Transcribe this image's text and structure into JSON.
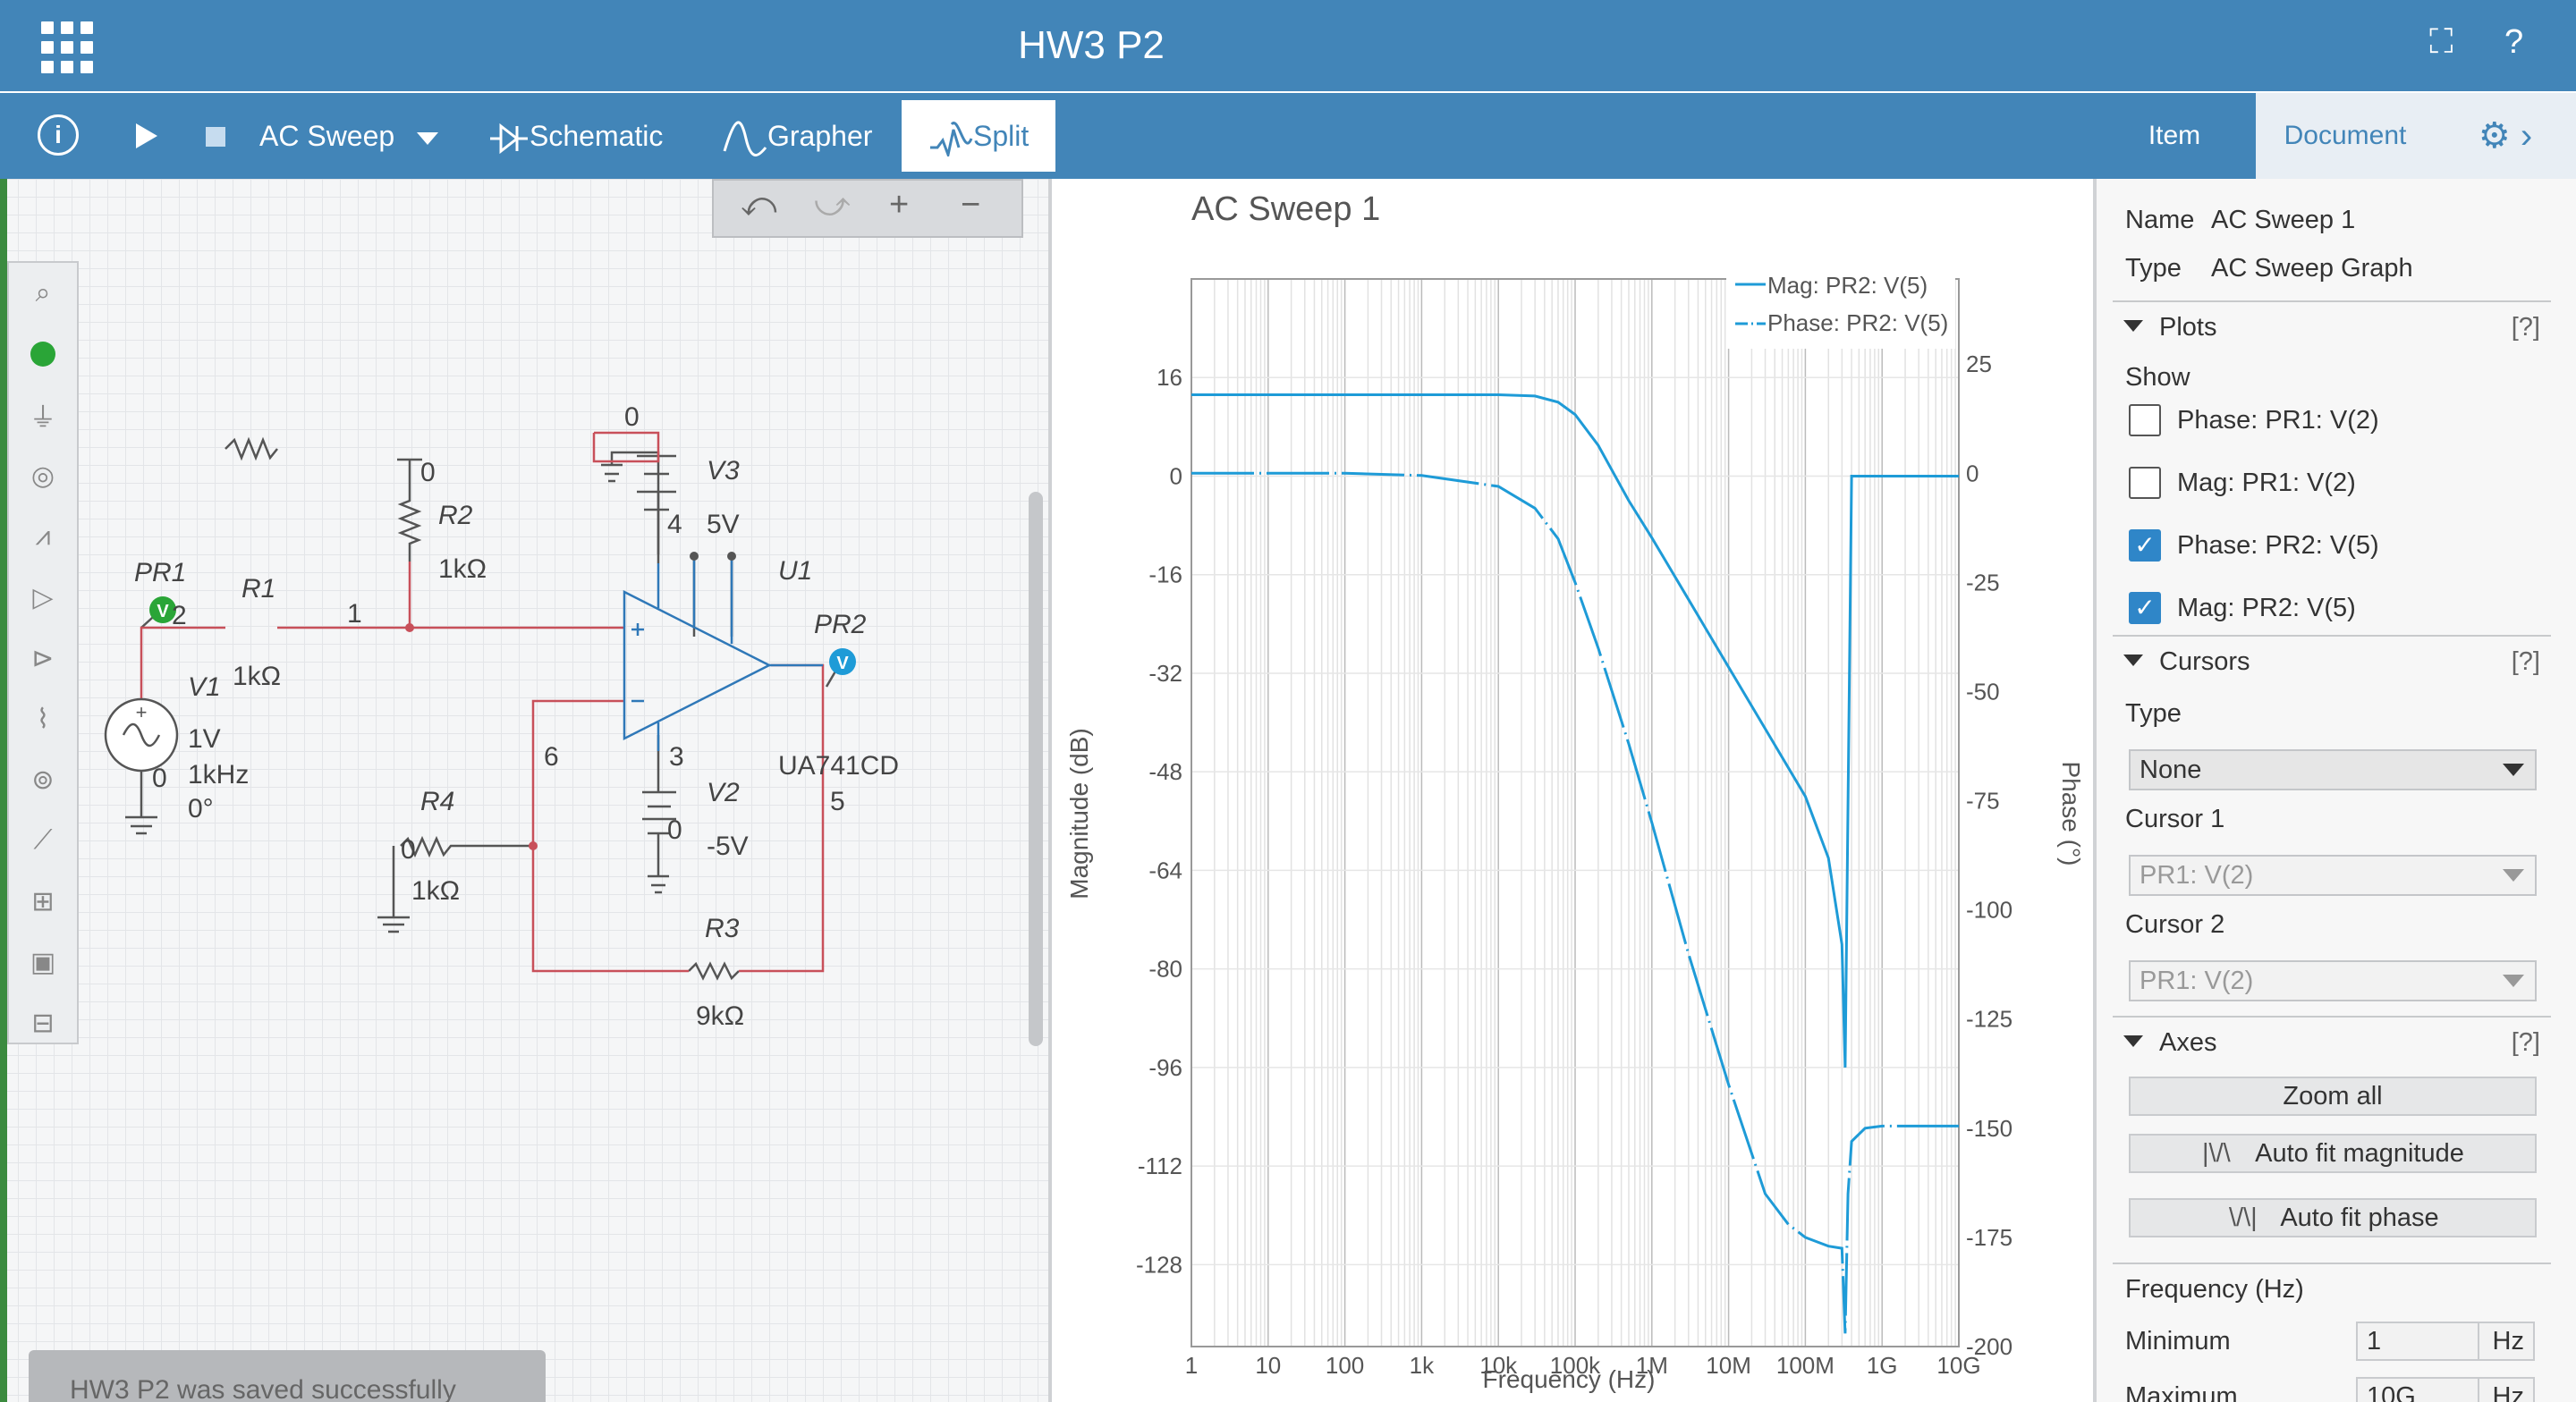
{
  "title": "HW3 P2",
  "titlebar": {
    "fullscreen_icon": "⛶",
    "help_icon": "?"
  },
  "toolbar": {
    "info_icon": "i",
    "sim_type": "AC Sweep",
    "tabs": {
      "schematic": "Schematic",
      "grapher": "Grapher",
      "split": "Split"
    }
  },
  "undobar": {
    "undo": "⤺",
    "redo": "⤻",
    "zoom_in": "+",
    "zoom_out": "−"
  },
  "toast": "HW3 P2 was saved successfully",
  "schematic": {
    "pr1": "PR1",
    "r1": "R1",
    "r1_value": "1kΩ",
    "node1": "1",
    "pr1_node": "2",
    "r2": "R2",
    "r2_value": "1kΩ",
    "r2_gnd_node": "0",
    "v1": "V1",
    "v1_node": "0",
    "v1_amp": "1V",
    "v1_freq": "1kHz",
    "v1_phase": "0°",
    "v3": "V3",
    "v3_value": "5V",
    "v3_node": "4",
    "top_node": "0",
    "u1": "U1",
    "u1_part": "UA741CD",
    "pr2": "PR2",
    "out_node": "5",
    "v2": "V2",
    "v2_value": "-5V",
    "v2_node": "3",
    "v2_gnd_node": "0",
    "node6": "6",
    "r4": "R4",
    "r4_value": "1kΩ",
    "r4_node": "0",
    "r3": "R3",
    "r3_value": "9kΩ",
    "probe_label": "V"
  },
  "graph": {
    "title": "AC Sweep 1",
    "legend": [
      "Mag: PR2: V(5)",
      "Phase: PR2: V(5)"
    ],
    "ylabel_left": "Magnitude (dB)",
    "ylabel_right": "Phase (°)",
    "xlabel": "Frequency (Hz)",
    "line_color": "#1e9bd7"
  },
  "chart_data": {
    "type": "line",
    "title": "AC Sweep 1",
    "xlabel": "Frequency (Hz)",
    "ylabel": "Magnitude (dB)",
    "y2label": "Phase (°)",
    "x_scale": "log",
    "x_ticks": [
      "1",
      "10",
      "100",
      "1k",
      "10k",
      "100k",
      "1M",
      "10M",
      "100M",
      "1G",
      "10G"
    ],
    "x_tick_values": [
      1,
      10,
      100,
      1000,
      10000,
      100000,
      1000000,
      10000000,
      100000000,
      1000000000,
      10000000000
    ],
    "xlim": [
      1,
      10000000000
    ],
    "ylim": [
      -128,
      16
    ],
    "y_ticks": [
      16,
      0,
      -16,
      -32,
      -48,
      -64,
      -80,
      -96,
      -112,
      -128
    ],
    "y2lim": [
      -200,
      25
    ],
    "y2_ticks": [
      25,
      0,
      -25,
      -50,
      -75,
      -100,
      -125,
      -150,
      -175,
      -200
    ],
    "grid": true,
    "legend_position": "top-right",
    "series": [
      {
        "name": "Mag: PR2: V(5)",
        "axis": "left",
        "x": [
          1,
          10,
          100,
          1000,
          10000,
          30000,
          60000,
          100000,
          200000,
          500000,
          1000000,
          3000000,
          10000000,
          30000000,
          100000000,
          200000000,
          300000000,
          330000000,
          400000000,
          1000000000,
          10000000000
        ],
        "y": [
          13.2,
          13.2,
          13.2,
          13.2,
          13.2,
          13,
          12,
          10,
          5,
          -4,
          -10,
          -20,
          -31,
          -41,
          -52,
          -62,
          -76,
          -96,
          0,
          0,
          0
        ]
      },
      {
        "name": "Phase: PR2: V(5)",
        "axis": "right",
        "x": [
          1,
          10,
          100,
          1000,
          10000,
          30000,
          60000,
          100000,
          200000,
          500000,
          1000000,
          3000000,
          10000000,
          30000000,
          60000000,
          100000000,
          200000000,
          300000000,
          330000000,
          360000000,
          400000000,
          600000000,
          1000000000,
          10000000000
        ],
        "y": [
          0,
          0,
          0,
          -0.5,
          -3,
          -8,
          -15,
          -25,
          -40,
          -62,
          -80,
          -110,
          -140,
          -165,
          -172,
          -175,
          -177,
          -177.5,
          -197,
          -165,
          -153,
          -150,
          -149.5,
          -149.5
        ]
      }
    ]
  },
  "panel": {
    "tabs": {
      "item": "Item",
      "document": "Document"
    },
    "name_label": "Name",
    "name_value": "AC Sweep 1",
    "type_label": "Type",
    "type_value": "AC Sweep Graph",
    "plots": "Plots",
    "help": "[?]",
    "show": "Show",
    "plot_items": [
      "Phase: PR1: V(2)",
      "Mag: PR1: V(2)",
      "Phase: PR2: V(5)",
      "Mag: PR2: V(5)"
    ],
    "plot_checked": [
      false,
      false,
      true,
      true
    ],
    "cursors": "Cursors",
    "cursor_type_label": "Type",
    "cursor_type_value": "None",
    "cursor1_label": "Cursor 1",
    "cursor1_value": "PR1: V(2)",
    "cursor2_label": "Cursor 2",
    "cursor2_value": "PR1: V(2)",
    "axes": "Axes",
    "zoom_all": "Zoom all",
    "auto_fit_magnitude": "Auto fit magnitude",
    "auto_fit_phase": "Auto fit phase",
    "mag_icon": "|\\/\\",
    "phase_icon": "\\/\\|",
    "frequency_label": "Frequency (Hz)",
    "minimum_label": "Minimum",
    "minimum_value": "1",
    "minimum_unit": "Hz",
    "maximum_label": "Maximum",
    "maximum_value": "10G",
    "maximum_unit": "Hz"
  }
}
